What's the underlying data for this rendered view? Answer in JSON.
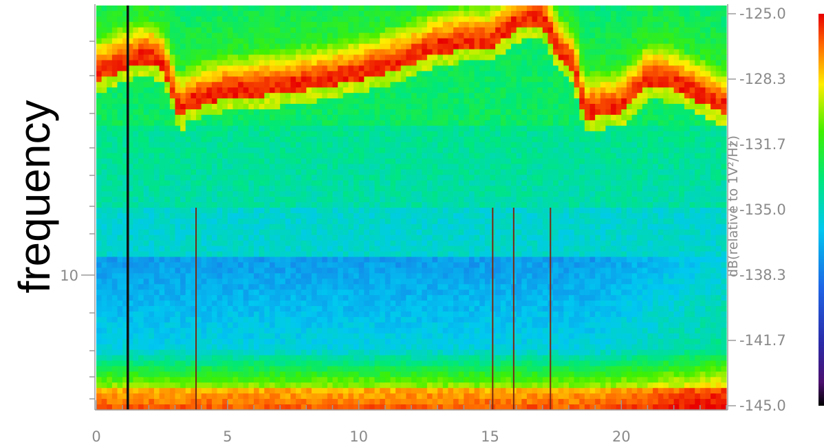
{
  "chart_data": {
    "type": "heatmap",
    "ylabel": "frequency",
    "xlabel": "",
    "xlim": [
      0,
      24
    ],
    "x_ticks": [
      0,
      5,
      10,
      15,
      20
    ],
    "y_ticks": [
      {
        "value": 10,
        "label": "10"
      }
    ],
    "y_scale": "log",
    "colorbar": {
      "label": "dB(relative to 1V²/Hz)",
      "min": -145.0,
      "max": -125.0,
      "ticks": [
        "-125.0",
        "-128.3",
        "-131.7",
        "-135.0",
        "-138.3",
        "-141.7",
        "-145.0"
      ],
      "colormap": "rainbow (black-purple-blue-cyan-green-yellow-red)"
    },
    "band_structure": [
      {
        "band": "top edge",
        "level_db": -133
      },
      {
        "band": "resonance ridge (rises from ~low at t=0-3 to top at t≈17, drops at t≈18.6)",
        "level_db": -126
      },
      {
        "band": "mid-high quiet band",
        "level_db": -132
      },
      {
        "band": "mid band",
        "level_db": -136
      },
      {
        "band": "lower band (around 10)",
        "level_db": -138
      },
      {
        "band": "bottom low-frequency band",
        "level_db": -126
      }
    ],
    "vertical_features": [
      {
        "x": 1.2,
        "kind": "data gap (black line)"
      },
      {
        "x": 3.8,
        "kind": "spike"
      },
      {
        "x": 15.1,
        "kind": "spike"
      },
      {
        "x": 15.9,
        "kind": "spike"
      },
      {
        "x": 17.3,
        "kind": "spike"
      }
    ]
  }
}
